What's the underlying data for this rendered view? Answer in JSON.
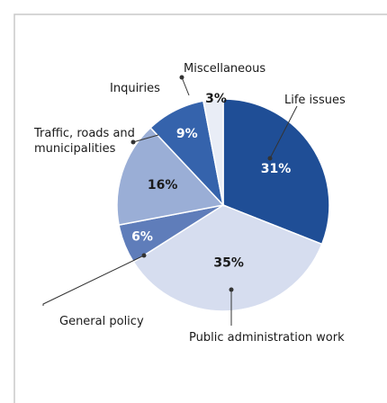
{
  "chart_data": {
    "type": "pie",
    "categories": [
      "Life issues",
      "Public administration work",
      "General policy",
      "Traffic, roads and municipalities",
      "Inquiries",
      "Miscellaneous"
    ],
    "values": [
      31,
      35,
      6,
      16,
      9,
      3
    ],
    "value_labels": [
      "31%",
      "35%",
      "6%",
      "16%",
      "9%",
      "3%"
    ],
    "colors": [
      "#1f4e96",
      "#d6ddef",
      "#5f7dba",
      "#9aaed6",
      "#3563ac",
      "#e9edf6"
    ]
  }
}
